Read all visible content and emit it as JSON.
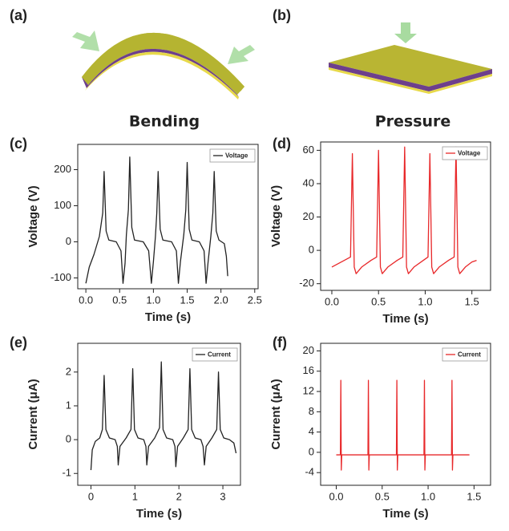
{
  "illustrations": [
    {
      "label": "(a)",
      "caption": "Bending"
    },
    {
      "label": "(b)",
      "caption": "Pressure"
    }
  ],
  "chart_data": [
    {
      "type": "line",
      "label": "(c)",
      "x_label": "Time (s)",
      "y_label": "Voltage (V)",
      "xlim": [
        -0.12,
        2.55
      ],
      "ylim": [
        -130,
        270
      ],
      "xticks": [
        {
          "value": 0,
          "label": "0.0"
        },
        0.5,
        {
          "value": 1,
          "label": "1.0"
        },
        1.5,
        {
          "value": 2,
          "label": "2.0"
        },
        2.5
      ],
      "yticks": [
        -100,
        0,
        100,
        200
      ],
      "legend": "upper right",
      "x": [
        0,
        0.05,
        0.12,
        0.2,
        0.25,
        0.27,
        0.3,
        0.34,
        0.45,
        0.52,
        0.55,
        0.58,
        0.6,
        0.63,
        0.65,
        0.68,
        0.72,
        0.85,
        0.93,
        0.97,
        1.0,
        1.03,
        1.05,
        1.07,
        1.1,
        1.14,
        1.27,
        1.34,
        1.37,
        1.4,
        1.45,
        1.48,
        1.5,
        1.53,
        1.57,
        1.68,
        1.75,
        1.78,
        1.81,
        1.85,
        1.88,
        1.9,
        1.93,
        1.97,
        2.05,
        2.08,
        2.1
      ],
      "series": [
        {
          "name": "Voltage",
          "color": "#222222",
          "values": [
            -115,
            -70,
            -35,
            15,
            80,
            195,
            30,
            5,
            0,
            -25,
            -115,
            -60,
            20,
            90,
            235,
            40,
            5,
            0,
            -25,
            -115,
            -55,
            15,
            80,
            195,
            35,
            5,
            0,
            -25,
            -115,
            -55,
            20,
            90,
            220,
            35,
            5,
            0,
            -25,
            -115,
            -55,
            15,
            80,
            195,
            30,
            5,
            -5,
            -40,
            -95
          ]
        }
      ]
    },
    {
      "type": "line",
      "label": "(d)",
      "x_label": "Time (s)",
      "y_label": "Voltage (V)",
      "xlim": [
        -0.12,
        1.7
      ],
      "ylim": [
        -24,
        65
      ],
      "xticks": [
        {
          "value": 0,
          "label": "0.0"
        },
        0.5,
        {
          "value": 1,
          "label": "1.0"
        },
        1.5
      ],
      "yticks": [
        -20,
        0,
        20,
        40,
        60
      ],
      "legend": "upper right",
      "x": [
        0,
        0.1,
        0.2,
        0.22,
        0.24,
        0.26,
        0.32,
        0.42,
        0.48,
        0.5,
        0.52,
        0.54,
        0.6,
        0.7,
        0.76,
        0.78,
        0.8,
        0.82,
        0.88,
        0.98,
        1.03,
        1.05,
        1.07,
        1.09,
        1.15,
        1.25,
        1.31,
        1.33,
        1.35,
        1.37,
        1.43,
        1.5,
        1.55
      ],
      "series": [
        {
          "name": "Voltage",
          "color": "#e8282a",
          "values": [
            -10,
            -7,
            -4,
            58,
            -10,
            -14,
            -10,
            -6,
            -4,
            60,
            -10,
            -14,
            -10,
            -6,
            -4,
            62,
            -10,
            -14,
            -10,
            -6,
            -4,
            58,
            -10,
            -14,
            -10,
            -6,
            -4,
            62,
            -10,
            -14,
            -10,
            -7,
            -6
          ]
        }
      ]
    },
    {
      "type": "line",
      "label": "(e)",
      "x_label": "Time (s)",
      "y_label": "Current (μA)",
      "xlim": [
        -0.3,
        3.4
      ],
      "ylim": [
        -1.35,
        2.85
      ],
      "xticks": [
        0,
        1,
        2,
        3
      ],
      "yticks": [
        -1,
        0,
        1,
        2
      ],
      "legend": "upper right",
      "x": [
        0,
        0.03,
        0.1,
        0.2,
        0.26,
        0.3,
        0.34,
        0.42,
        0.55,
        0.6,
        0.62,
        0.66,
        0.8,
        0.91,
        0.95,
        0.99,
        1.07,
        1.2,
        1.25,
        1.27,
        1.31,
        1.45,
        1.56,
        1.6,
        1.64,
        1.72,
        1.86,
        1.91,
        1.93,
        1.97,
        2.1,
        2.21,
        2.25,
        2.29,
        2.37,
        2.5,
        2.55,
        2.58,
        2.62,
        2.75,
        2.86,
        2.9,
        2.94,
        3.02,
        3.15,
        3.25,
        3.3
      ],
      "series": [
        {
          "name": "Current",
          "color": "#222222",
          "values": [
            -0.9,
            -0.3,
            -0.05,
            0.05,
            0.3,
            1.9,
            0.3,
            0.05,
            0,
            -0.2,
            -0.75,
            -0.2,
            0.05,
            0.3,
            2.1,
            0.3,
            0.05,
            0,
            -0.2,
            -0.75,
            -0.2,
            0.05,
            0.35,
            2.3,
            0.3,
            0.05,
            0,
            -0.2,
            -0.8,
            -0.2,
            0.05,
            0.3,
            2.1,
            0.3,
            0.05,
            0,
            -0.2,
            -0.75,
            -0.2,
            0.05,
            0.3,
            2.0,
            0.3,
            0.05,
            0,
            -0.1,
            -0.4
          ]
        }
      ]
    },
    {
      "type": "line",
      "label": "(f)",
      "x_label": "Time (s)",
      "y_label": "Current (μA)",
      "xlim": [
        -0.17,
        1.68
      ],
      "ylim": [
        -6.5,
        21.5
      ],
      "xticks": [
        {
          "value": 0,
          "label": "0.0"
        },
        0.5,
        {
          "value": 1,
          "label": "1.0"
        },
        1.5
      ],
      "yticks": [
        -4,
        0,
        4,
        8,
        12,
        16,
        20
      ],
      "legend": "upper right",
      "x": [
        0,
        0.045,
        0.05,
        0.055,
        0.06,
        0.345,
        0.35,
        0.355,
        0.36,
        0.655,
        0.66,
        0.665,
        0.67,
        0.955,
        0.96,
        0.965,
        0.97,
        1.255,
        1.26,
        1.265,
        1.27,
        1.45
      ],
      "series": [
        {
          "name": "Current",
          "color": "#e8282a",
          "values": [
            -0.5,
            -0.5,
            14.2,
            -3.5,
            -0.5,
            -0.5,
            14.2,
            -3.5,
            -0.5,
            -0.5,
            14.2,
            -3.5,
            -0.5,
            -0.5,
            14.2,
            -3.5,
            -0.5,
            -0.5,
            14.2,
            -3.5,
            -0.5,
            -0.5
          ]
        }
      ]
    }
  ]
}
